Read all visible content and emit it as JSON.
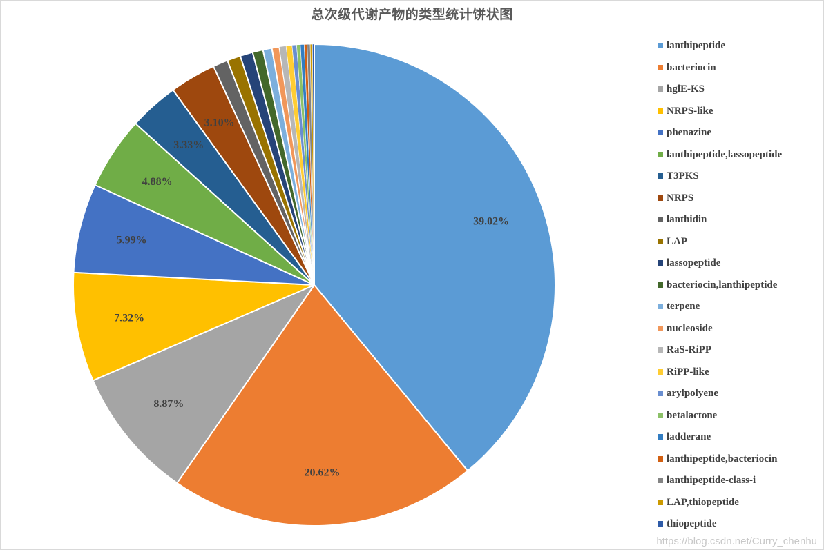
{
  "chart_data": {
    "type": "pie",
    "title": "总次级代谢产物的类型统计饼状图",
    "legend_position": "right",
    "slices": [
      {
        "name": "lanthipeptide",
        "value": 39.02,
        "label": "39.02%",
        "color": "#5b9bd5"
      },
      {
        "name": "bacteriocin",
        "value": 20.62,
        "label": "20.62%",
        "color": "#ed7d31"
      },
      {
        "name": "hglE-KS",
        "value": 8.87,
        "label": "8.87%",
        "color": "#a5a5a5"
      },
      {
        "name": "NRPS-like",
        "value": 7.32,
        "label": "7.32%",
        "color": "#ffc000"
      },
      {
        "name": "phenazine",
        "value": 5.99,
        "label": "5.99%",
        "color": "#4472c4"
      },
      {
        "name": "lanthipeptide,lassopeptide",
        "value": 4.88,
        "label": "4.88%",
        "color": "#70ad47"
      },
      {
        "name": "T3PKS",
        "value": 3.33,
        "label": "3.33%",
        "color": "#255e91"
      },
      {
        "name": "NRPS",
        "value": 3.1,
        "label": "3.10%",
        "color": "#9e480e"
      },
      {
        "name": "lanthidin",
        "value": 1.0,
        "label": "",
        "color": "#636363"
      },
      {
        "name": "LAP",
        "value": 0.9,
        "label": "",
        "color": "#997300"
      },
      {
        "name": "lassopeptide",
        "value": 0.85,
        "label": "",
        "color": "#264478"
      },
      {
        "name": "bacteriocin,lanthipeptide",
        "value": 0.7,
        "label": "",
        "color": "#43682b"
      },
      {
        "name": "terpene",
        "value": 0.6,
        "label": "",
        "color": "#7cafdd"
      },
      {
        "name": "nucleoside",
        "value": 0.5,
        "label": "",
        "color": "#f1975a"
      },
      {
        "name": "RaS-RiPP",
        "value": 0.45,
        "label": "",
        "color": "#b7b7b7"
      },
      {
        "name": "RiPP-like",
        "value": 0.4,
        "label": "",
        "color": "#ffcd33"
      },
      {
        "name": "arylpolyene",
        "value": 0.3,
        "label": "",
        "color": "#698ed0"
      },
      {
        "name": "betalactone",
        "value": 0.25,
        "label": "",
        "color": "#8cc168"
      },
      {
        "name": "ladderane",
        "value": 0.25,
        "label": "",
        "color": "#327dc2"
      },
      {
        "name": "lanthipeptide,bacteriocin",
        "value": 0.2,
        "label": "",
        "color": "#d26012"
      },
      {
        "name": "lanthipeptide-class-i",
        "value": 0.2,
        "label": "",
        "color": "#848484"
      },
      {
        "name": "LAP,thiopeptide",
        "value": 0.15,
        "label": "",
        "color": "#cc9a00"
      },
      {
        "name": "thiopeptide",
        "value": 0.12,
        "label": "",
        "color": "#2e5ba8"
      }
    ]
  },
  "watermark": "https://blog.csdn.net/Curry_chenhu"
}
